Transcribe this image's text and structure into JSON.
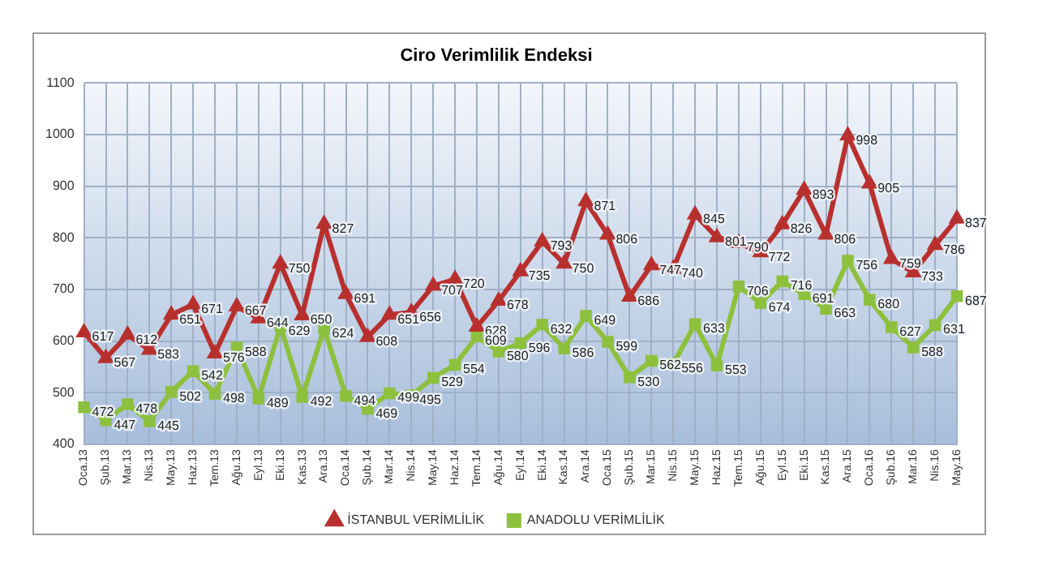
{
  "chart_data": {
    "type": "line",
    "title": "Ciro Verimlilik Endeksi",
    "categories": [
      "Oca.13",
      "Şub.13",
      "Mar.13",
      "Nis.13",
      "May.13",
      "Haz.13",
      "Tem.13",
      "Ağu.13",
      "Eyl.13",
      "Eki.13",
      "Kas.13",
      "Ara.13",
      "Oca.14",
      "Şub.14",
      "Mar.14",
      "Nis.14",
      "May.14",
      "Haz.14",
      "Tem.14",
      "Ağu.14",
      "Eyl.14",
      "Eki.14",
      "Kas.14",
      "Ara.14",
      "Oca.15",
      "Şub.15",
      "Mar.15",
      "Nis.15",
      "May.15",
      "Haz.15",
      "Tem.15",
      "Ağu.15",
      "Eyl.15",
      "Eki.15",
      "Kas.15",
      "Ara.15",
      "Oca.16",
      "Şub.16",
      "Mar.16",
      "Nis.16",
      "May.16"
    ],
    "series": [
      {
        "name": "İSTANBUL VERİMLİLİK",
        "color": "#b8302e",
        "marker": "triangle",
        "values": [
          617,
          567,
          612,
          583,
          651,
          671,
          576,
          667,
          644,
          750,
          650,
          827,
          691,
          608,
          651,
          656,
          707,
          720,
          628,
          678,
          735,
          793,
          750,
          871,
          806,
          686,
          747,
          740,
          845,
          801,
          790,
          772,
          826,
          893,
          806,
          998,
          905,
          759,
          733,
          786,
          837
        ]
      },
      {
        "name": "ANADOLU VERİMLİLİK",
        "color": "#8dc03c",
        "marker": "square",
        "values": [
          472,
          447,
          478,
          445,
          502,
          542,
          498,
          588,
          489,
          629,
          492,
          624,
          494,
          469,
          499,
          495,
          529,
          554,
          609,
          580,
          596,
          632,
          586,
          649,
          599,
          530,
          562,
          556,
          633,
          553,
          706,
          674,
          716,
          691,
          663,
          756,
          680,
          627,
          588,
          631,
          687
        ]
      }
    ],
    "ylim": [
      400,
      1100
    ],
    "yticks": [
      400,
      500,
      600,
      700,
      800,
      900,
      1000,
      1100
    ],
    "grid": true,
    "legend": "bottom",
    "data_labels": true,
    "line_style": "solid"
  }
}
